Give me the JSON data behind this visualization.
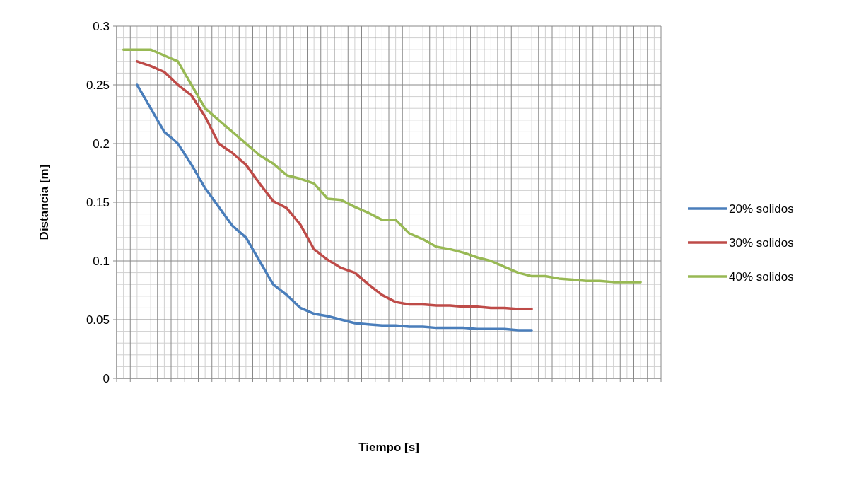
{
  "chart_data": {
    "type": "line",
    "xlabel": "Tiempo [s]",
    "ylabel": "Distancia [m]",
    "categories": [
      null,
      null,
      null,
      null,
      null,
      null,
      null,
      null,
      null,
      null,
      null,
      null,
      null,
      null,
      null,
      null,
      null,
      null,
      null,
      null,
      null,
      null,
      null,
      null,
      null,
      null,
      null,
      null,
      null,
      null,
      null,
      null,
      null,
      null,
      null,
      null,
      null,
      null,
      null,
      null
    ],
    "series": [
      {
        "name": "20% solidos",
        "color": "#4a7ebb",
        "values": [
          null,
          0.25,
          0.23,
          0.21,
          0.2,
          0.182,
          0.162,
          0.146,
          0.13,
          0.12,
          0.1,
          0.08,
          0.071,
          0.06,
          0.055,
          0.053,
          0.05,
          0.047,
          0.046,
          0.045,
          0.045,
          0.044,
          0.044,
          0.043,
          0.043,
          0.043,
          0.042,
          0.042,
          0.042,
          0.041,
          0.041,
          null,
          null,
          null,
          null,
          null,
          null,
          null,
          null,
          null
        ]
      },
      {
        "name": "30% solidos",
        "color": "#be4b48",
        "values": [
          null,
          0.27,
          0.266,
          0.261,
          0.25,
          0.241,
          0.223,
          0.2,
          0.192,
          0.182,
          0.166,
          0.151,
          0.145,
          0.131,
          0.11,
          0.101,
          0.094,
          0.09,
          0.08,
          0.071,
          0.065,
          0.063,
          0.063,
          0.062,
          0.062,
          0.061,
          0.061,
          0.06,
          0.06,
          0.059,
          0.059,
          null,
          null,
          null,
          null,
          null,
          null,
          null,
          null,
          null
        ]
      },
      {
        "name": "40% solidos",
        "color": "#98b954",
        "values": [
          0.28,
          0.28,
          0.28,
          0.275,
          0.27,
          0.25,
          0.23,
          0.22,
          0.21,
          0.2,
          0.19,
          0.183,
          0.173,
          0.17,
          0.166,
          0.153,
          0.152,
          0.146,
          0.141,
          0.135,
          0.135,
          0.1235,
          0.1185,
          0.112,
          0.11,
          0.107,
          0.103,
          0.1,
          0.095,
          0.09,
          0.087,
          0.087,
          0.085,
          0.084,
          0.083,
          0.083,
          0.082,
          0.082,
          0.082,
          null
        ]
      }
    ],
    "ylim": [
      0,
      0.3
    ],
    "yticks": [
      0,
      0.05,
      0.1,
      0.15,
      0.2,
      0.25,
      0.3
    ],
    "grid": true,
    "legend": "right",
    "line_style": "solid",
    "marker": "none"
  }
}
